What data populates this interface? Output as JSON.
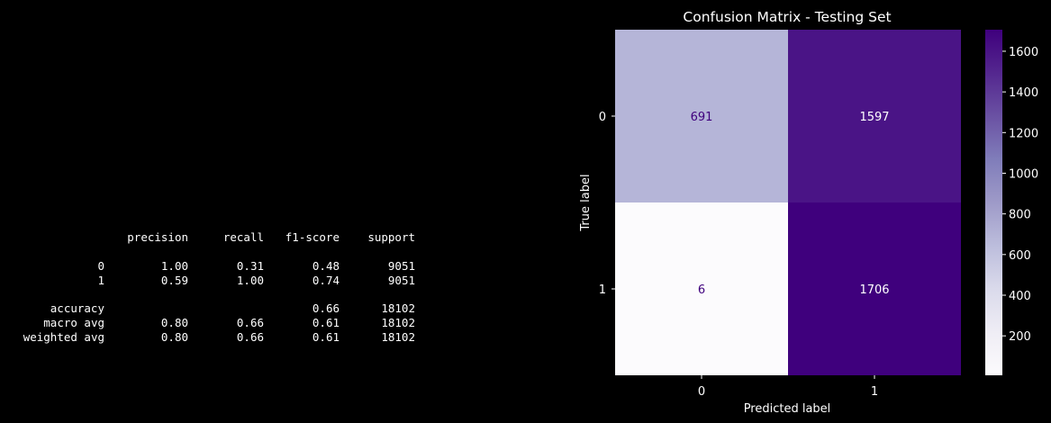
{
  "report": {
    "header": [
      "",
      "precision",
      "recall",
      "f1-score",
      "support"
    ],
    "class_rows": [
      [
        "0",
        "1.00",
        "0.31",
        "0.48",
        "9051"
      ],
      [
        "1",
        "0.59",
        "1.00",
        "0.74",
        "9051"
      ]
    ],
    "summary_rows": [
      [
        "accuracy",
        "",
        "",
        "0.66",
        "18102"
      ],
      [
        "macro avg",
        "0.80",
        "0.66",
        "0.61",
        "18102"
      ],
      [
        "weighted avg",
        "0.80",
        "0.66",
        "0.61",
        "18102"
      ]
    ]
  },
  "chart_data": {
    "type": "heatmap",
    "title": "Confusion Matrix - Testing Set",
    "xlabel": "Predicted label",
    "ylabel": "True label",
    "x_categories": [
      "0",
      "1"
    ],
    "y_categories": [
      "0",
      "1"
    ],
    "values": [
      [
        691,
        1597
      ],
      [
        6,
        1706
      ]
    ],
    "colormap": "Purples",
    "color_min": 6,
    "color_max": 1706,
    "colorbar_ticks": [
      200,
      400,
      600,
      800,
      1000,
      1200,
      1400,
      1600
    ],
    "light_text_color": "#ffffff",
    "dark_text_color": "#3f007d",
    "grid": false
  }
}
